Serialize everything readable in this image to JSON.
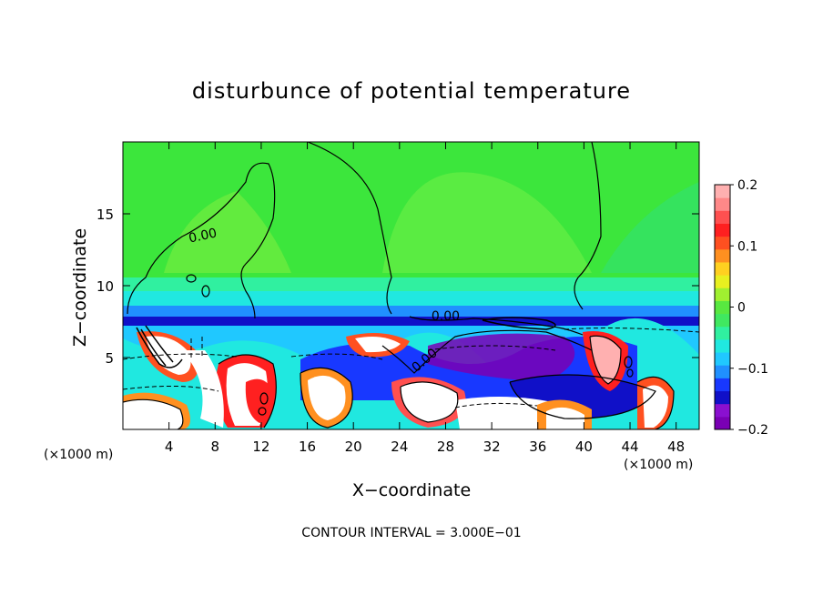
{
  "chart_data": {
    "type": "heatmap",
    "title": "disturbunce of potential temperature",
    "xlabel": "X−coordinate",
    "ylabel": "Z−coordinate",
    "x_unit_left": "(×1000 m)",
    "x_unit_right": "(×1000 m)",
    "x_ticks": [
      4,
      8,
      12,
      16,
      20,
      24,
      28,
      32,
      36,
      40,
      44,
      48
    ],
    "y_ticks": [
      5,
      10,
      15
    ],
    "xlim": [
      0,
      50
    ],
    "ylim": [
      0,
      20
    ],
    "colorbar": {
      "ticks": [
        "0.2",
        "0.1",
        "0",
        "−0.1",
        "−0.2"
      ],
      "tick_values": [
        0.2,
        0.1,
        0,
        -0.1,
        -0.2
      ],
      "range": [
        -0.2,
        0.2
      ],
      "colors": [
        "#7a00b4",
        "#8a10d0",
        "#1010c8",
        "#1838ff",
        "#2090ff",
        "#20c8ff",
        "#20e8e0",
        "#30f0a0",
        "#40e860",
        "#58e840",
        "#a0f030",
        "#e8f020",
        "#ffd020",
        "#ff9020",
        "#ff5020",
        "#ff2020",
        "#ff5050",
        "#ff8888",
        "#ffb0b0"
      ]
    },
    "contour_labels": [
      {
        "text": "0.00"
      },
      {
        "text": "0.00"
      },
      {
        "text": "0.00"
      }
    ],
    "footnote": "CONTOUR INTERVAL = 3.000E−01"
  }
}
